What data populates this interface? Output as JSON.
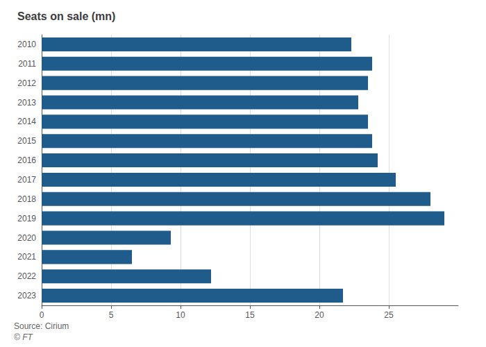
{
  "chart_data": {
    "type": "bar",
    "orientation": "horizontal",
    "title": "Seats on sale (mn)",
    "categories": [
      "2010",
      "2011",
      "2012",
      "2013",
      "2014",
      "2015",
      "2016",
      "2017",
      "2018",
      "2019",
      "2020",
      "2021",
      "2022",
      "2023"
    ],
    "values": [
      22.3,
      23.8,
      23.5,
      22.8,
      23.5,
      23.8,
      24.2,
      25.5,
      28.0,
      29.0,
      9.3,
      6.5,
      12.2,
      21.7
    ],
    "color": "#1f5c8b",
    "xlim": [
      0,
      30
    ],
    "xticks": [
      0,
      5,
      10,
      15,
      20,
      25
    ],
    "grid": true,
    "annotations": [
      "Source: Cirium",
      "© FT"
    ]
  }
}
